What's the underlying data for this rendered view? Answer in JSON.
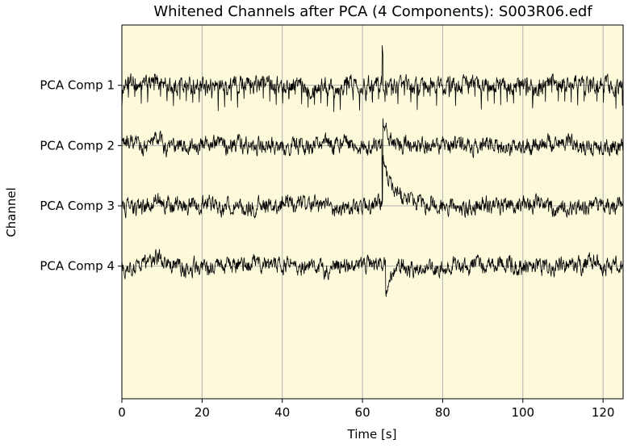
{
  "chart_data": {
    "type": "line",
    "title": "Whitened Channels after PCA (4 Components): S003R06.edf",
    "xlabel": "Time [s]",
    "ylabel": "Channel",
    "xlim": [
      0,
      125
    ],
    "xticks": [
      0,
      20,
      40,
      60,
      80,
      100,
      120
    ],
    "grid": true,
    "background": "#fcfadb",
    "line_color": "#000000",
    "grid_color": "#b0b0b0",
    "series": [
      {
        "name": "PCA Comp 1",
        "baseline_offset": 3,
        "pattern": "periodic-downward-spikes",
        "spike_period_s": 1.6,
        "event_time_s": 65,
        "event_peak": 0.55
      },
      {
        "name": "PCA Comp 2",
        "baseline_offset": 2,
        "pattern": "noise",
        "event_time_s": 65,
        "event_min": -0.95,
        "event_peak": 0.45
      },
      {
        "name": "PCA Comp 3",
        "baseline_offset": 1,
        "pattern": "noise",
        "event_time_s": 65,
        "event_peak": 0.8,
        "event_decay_s": 5
      },
      {
        "name": "PCA Comp 4",
        "baseline_offset": 0,
        "pattern": "noise",
        "event_time_s": 66,
        "event_min": -0.6
      }
    ]
  }
}
